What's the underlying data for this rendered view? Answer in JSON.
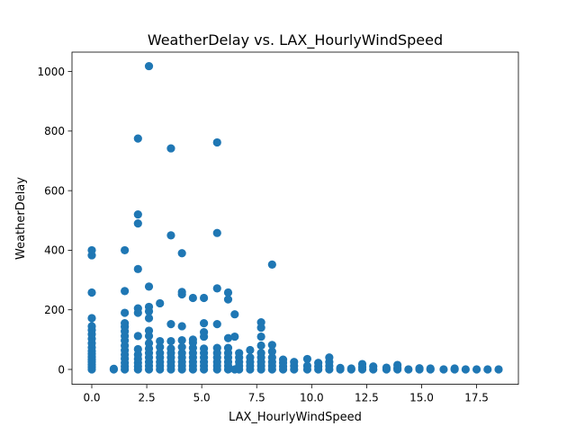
{
  "chart_data": {
    "type": "scatter",
    "title": "WeatherDelay vs. LAX_HourlyWindSpeed",
    "xlabel": "LAX_HourlyWindSpeed",
    "ylabel": "WeatherDelay",
    "xlim": [
      -0.9,
      19.4
    ],
    "ylim": [
      -50,
      1065
    ],
    "xticks": [
      0.0,
      2.5,
      5.0,
      7.5,
      10.0,
      12.5,
      15.0,
      17.5
    ],
    "xtick_labels": [
      "0.0",
      "2.5",
      "5.0",
      "7.5",
      "10.0",
      "12.5",
      "15.0",
      "17.5"
    ],
    "yticks": [
      0,
      200,
      400,
      600,
      800,
      1000
    ],
    "ytick_labels": [
      "0",
      "200",
      "400",
      "600",
      "800",
      "1000"
    ],
    "grid": false,
    "legend": "none",
    "color": "#1f77b4",
    "points": [
      {
        "x": 0,
        "y": 0
      },
      {
        "x": 0,
        "y": 8
      },
      {
        "x": 0,
        "y": 16
      },
      {
        "x": 0,
        "y": 25
      },
      {
        "x": 0,
        "y": 33
      },
      {
        "x": 0,
        "y": 42
      },
      {
        "x": 0,
        "y": 52
      },
      {
        "x": 0,
        "y": 62
      },
      {
        "x": 0,
        "y": 74
      },
      {
        "x": 0,
        "y": 88
      },
      {
        "x": 0,
        "y": 103
      },
      {
        "x": 0,
        "y": 118
      },
      {
        "x": 0,
        "y": 132
      },
      {
        "x": 0,
        "y": 145
      },
      {
        "x": 0,
        "y": 172
      },
      {
        "x": 0,
        "y": 258
      },
      {
        "x": 0,
        "y": 383
      },
      {
        "x": 0,
        "y": 400
      },
      {
        "x": 1.0,
        "y": 0
      },
      {
        "x": 1.0,
        "y": 2
      },
      {
        "x": 1.5,
        "y": 0
      },
      {
        "x": 1.5,
        "y": 10
      },
      {
        "x": 1.5,
        "y": 22
      },
      {
        "x": 1.5,
        "y": 36
      },
      {
        "x": 1.5,
        "y": 50
      },
      {
        "x": 1.5,
        "y": 64
      },
      {
        "x": 1.5,
        "y": 80
      },
      {
        "x": 1.5,
        "y": 97
      },
      {
        "x": 1.5,
        "y": 112
      },
      {
        "x": 1.5,
        "y": 128
      },
      {
        "x": 1.5,
        "y": 143
      },
      {
        "x": 1.5,
        "y": 155
      },
      {
        "x": 1.5,
        "y": 190
      },
      {
        "x": 1.5,
        "y": 263
      },
      {
        "x": 1.5,
        "y": 400
      },
      {
        "x": 2.1,
        "y": 0
      },
      {
        "x": 2.1,
        "y": 10
      },
      {
        "x": 2.1,
        "y": 22
      },
      {
        "x": 2.1,
        "y": 35
      },
      {
        "x": 2.1,
        "y": 50
      },
      {
        "x": 2.1,
        "y": 68
      },
      {
        "x": 2.1,
        "y": 112
      },
      {
        "x": 2.1,
        "y": 190
      },
      {
        "x": 2.1,
        "y": 205
      },
      {
        "x": 2.1,
        "y": 337
      },
      {
        "x": 2.1,
        "y": 490
      },
      {
        "x": 2.1,
        "y": 520
      },
      {
        "x": 2.1,
        "y": 775
      },
      {
        "x": 2.6,
        "y": 0
      },
      {
        "x": 2.6,
        "y": 12
      },
      {
        "x": 2.6,
        "y": 25
      },
      {
        "x": 2.6,
        "y": 40
      },
      {
        "x": 2.6,
        "y": 55
      },
      {
        "x": 2.6,
        "y": 70
      },
      {
        "x": 2.6,
        "y": 88
      },
      {
        "x": 2.6,
        "y": 112
      },
      {
        "x": 2.6,
        "y": 130
      },
      {
        "x": 2.6,
        "y": 172
      },
      {
        "x": 2.6,
        "y": 195
      },
      {
        "x": 2.6,
        "y": 210
      },
      {
        "x": 2.6,
        "y": 278
      },
      {
        "x": 2.6,
        "y": 1018
      },
      {
        "x": 3.1,
        "y": 0
      },
      {
        "x": 3.1,
        "y": 12
      },
      {
        "x": 3.1,
        "y": 25
      },
      {
        "x": 3.1,
        "y": 40
      },
      {
        "x": 3.1,
        "y": 55
      },
      {
        "x": 3.1,
        "y": 75
      },
      {
        "x": 3.1,
        "y": 95
      },
      {
        "x": 3.1,
        "y": 222
      },
      {
        "x": 3.6,
        "y": 0
      },
      {
        "x": 3.6,
        "y": 12
      },
      {
        "x": 3.6,
        "y": 25
      },
      {
        "x": 3.6,
        "y": 40
      },
      {
        "x": 3.6,
        "y": 55
      },
      {
        "x": 3.6,
        "y": 70
      },
      {
        "x": 3.6,
        "y": 95
      },
      {
        "x": 3.6,
        "y": 152
      },
      {
        "x": 3.6,
        "y": 450
      },
      {
        "x": 3.6,
        "y": 742
      },
      {
        "x": 4.1,
        "y": 0
      },
      {
        "x": 4.1,
        "y": 12
      },
      {
        "x": 4.1,
        "y": 25
      },
      {
        "x": 4.1,
        "y": 40
      },
      {
        "x": 4.1,
        "y": 55
      },
      {
        "x": 4.1,
        "y": 75
      },
      {
        "x": 4.1,
        "y": 98
      },
      {
        "x": 4.1,
        "y": 145
      },
      {
        "x": 4.1,
        "y": 252
      },
      {
        "x": 4.1,
        "y": 260
      },
      {
        "x": 4.1,
        "y": 390
      },
      {
        "x": 4.6,
        "y": 0
      },
      {
        "x": 4.6,
        "y": 12
      },
      {
        "x": 4.6,
        "y": 25
      },
      {
        "x": 4.6,
        "y": 40
      },
      {
        "x": 4.6,
        "y": 55
      },
      {
        "x": 4.6,
        "y": 72
      },
      {
        "x": 4.6,
        "y": 90
      },
      {
        "x": 4.6,
        "y": 100
      },
      {
        "x": 4.6,
        "y": 240
      },
      {
        "x": 5.1,
        "y": 0
      },
      {
        "x": 5.1,
        "y": 12
      },
      {
        "x": 5.1,
        "y": 25
      },
      {
        "x": 5.1,
        "y": 40
      },
      {
        "x": 5.1,
        "y": 55
      },
      {
        "x": 5.1,
        "y": 70
      },
      {
        "x": 5.1,
        "y": 110
      },
      {
        "x": 5.1,
        "y": 125
      },
      {
        "x": 5.1,
        "y": 155
      },
      {
        "x": 5.1,
        "y": 240
      },
      {
        "x": 5.7,
        "y": 0
      },
      {
        "x": 5.7,
        "y": 12
      },
      {
        "x": 5.7,
        "y": 25
      },
      {
        "x": 5.7,
        "y": 40
      },
      {
        "x": 5.7,
        "y": 55
      },
      {
        "x": 5.7,
        "y": 72
      },
      {
        "x": 5.7,
        "y": 152
      },
      {
        "x": 5.7,
        "y": 272
      },
      {
        "x": 5.7,
        "y": 458
      },
      {
        "x": 5.7,
        "y": 762
      },
      {
        "x": 6.2,
        "y": 0
      },
      {
        "x": 6.2,
        "y": 12
      },
      {
        "x": 6.2,
        "y": 25
      },
      {
        "x": 6.2,
        "y": 40
      },
      {
        "x": 6.2,
        "y": 55
      },
      {
        "x": 6.2,
        "y": 72
      },
      {
        "x": 6.2,
        "y": 105
      },
      {
        "x": 6.2,
        "y": 235
      },
      {
        "x": 6.2,
        "y": 258
      },
      {
        "x": 6.5,
        "y": 0
      },
      {
        "x": 6.5,
        "y": 110
      },
      {
        "x": 6.5,
        "y": 185
      },
      {
        "x": 6.7,
        "y": 0
      },
      {
        "x": 6.7,
        "y": 12
      },
      {
        "x": 6.7,
        "y": 25
      },
      {
        "x": 6.7,
        "y": 40
      },
      {
        "x": 6.7,
        "y": 55
      },
      {
        "x": 7.2,
        "y": 0
      },
      {
        "x": 7.2,
        "y": 12
      },
      {
        "x": 7.2,
        "y": 25
      },
      {
        "x": 7.2,
        "y": 40
      },
      {
        "x": 7.2,
        "y": 65
      },
      {
        "x": 7.7,
        "y": 0
      },
      {
        "x": 7.7,
        "y": 12
      },
      {
        "x": 7.7,
        "y": 25
      },
      {
        "x": 7.7,
        "y": 40
      },
      {
        "x": 7.7,
        "y": 55
      },
      {
        "x": 7.7,
        "y": 80
      },
      {
        "x": 7.7,
        "y": 110
      },
      {
        "x": 7.7,
        "y": 140
      },
      {
        "x": 7.7,
        "y": 158
      },
      {
        "x": 8.2,
        "y": 0
      },
      {
        "x": 8.2,
        "y": 12
      },
      {
        "x": 8.2,
        "y": 25
      },
      {
        "x": 8.2,
        "y": 40
      },
      {
        "x": 8.2,
        "y": 60
      },
      {
        "x": 8.2,
        "y": 82
      },
      {
        "x": 8.2,
        "y": 352
      },
      {
        "x": 8.7,
        "y": 0
      },
      {
        "x": 8.7,
        "y": 10
      },
      {
        "x": 8.7,
        "y": 22
      },
      {
        "x": 8.7,
        "y": 33
      },
      {
        "x": 9.2,
        "y": 0
      },
      {
        "x": 9.2,
        "y": 12
      },
      {
        "x": 9.2,
        "y": 25
      },
      {
        "x": 9.8,
        "y": 0
      },
      {
        "x": 9.8,
        "y": 12
      },
      {
        "x": 9.8,
        "y": 35
      },
      {
        "x": 10.3,
        "y": 0
      },
      {
        "x": 10.3,
        "y": 10
      },
      {
        "x": 10.3,
        "y": 22
      },
      {
        "x": 10.8,
        "y": 0
      },
      {
        "x": 10.8,
        "y": 12
      },
      {
        "x": 10.8,
        "y": 25
      },
      {
        "x": 10.8,
        "y": 40
      },
      {
        "x": 11.3,
        "y": 0
      },
      {
        "x": 11.3,
        "y": 5
      },
      {
        "x": 11.8,
        "y": 0
      },
      {
        "x": 11.8,
        "y": 3
      },
      {
        "x": 12.3,
        "y": 0
      },
      {
        "x": 12.3,
        "y": 8
      },
      {
        "x": 12.3,
        "y": 18
      },
      {
        "x": 12.8,
        "y": 0
      },
      {
        "x": 12.8,
        "y": 10
      },
      {
        "x": 13.4,
        "y": 0
      },
      {
        "x": 13.4,
        "y": 6
      },
      {
        "x": 13.9,
        "y": 0
      },
      {
        "x": 13.9,
        "y": 5
      },
      {
        "x": 13.9,
        "y": 15
      },
      {
        "x": 14.4,
        "y": 0
      },
      {
        "x": 14.9,
        "y": 0
      },
      {
        "x": 14.9,
        "y": 4
      },
      {
        "x": 15.4,
        "y": 0
      },
      {
        "x": 15.4,
        "y": 3
      },
      {
        "x": 16.0,
        "y": 0
      },
      {
        "x": 16.5,
        "y": 0
      },
      {
        "x": 16.5,
        "y": 3
      },
      {
        "x": 17.0,
        "y": 0
      },
      {
        "x": 17.5,
        "y": 0
      },
      {
        "x": 18.0,
        "y": 0
      },
      {
        "x": 18.5,
        "y": 0
      }
    ]
  }
}
